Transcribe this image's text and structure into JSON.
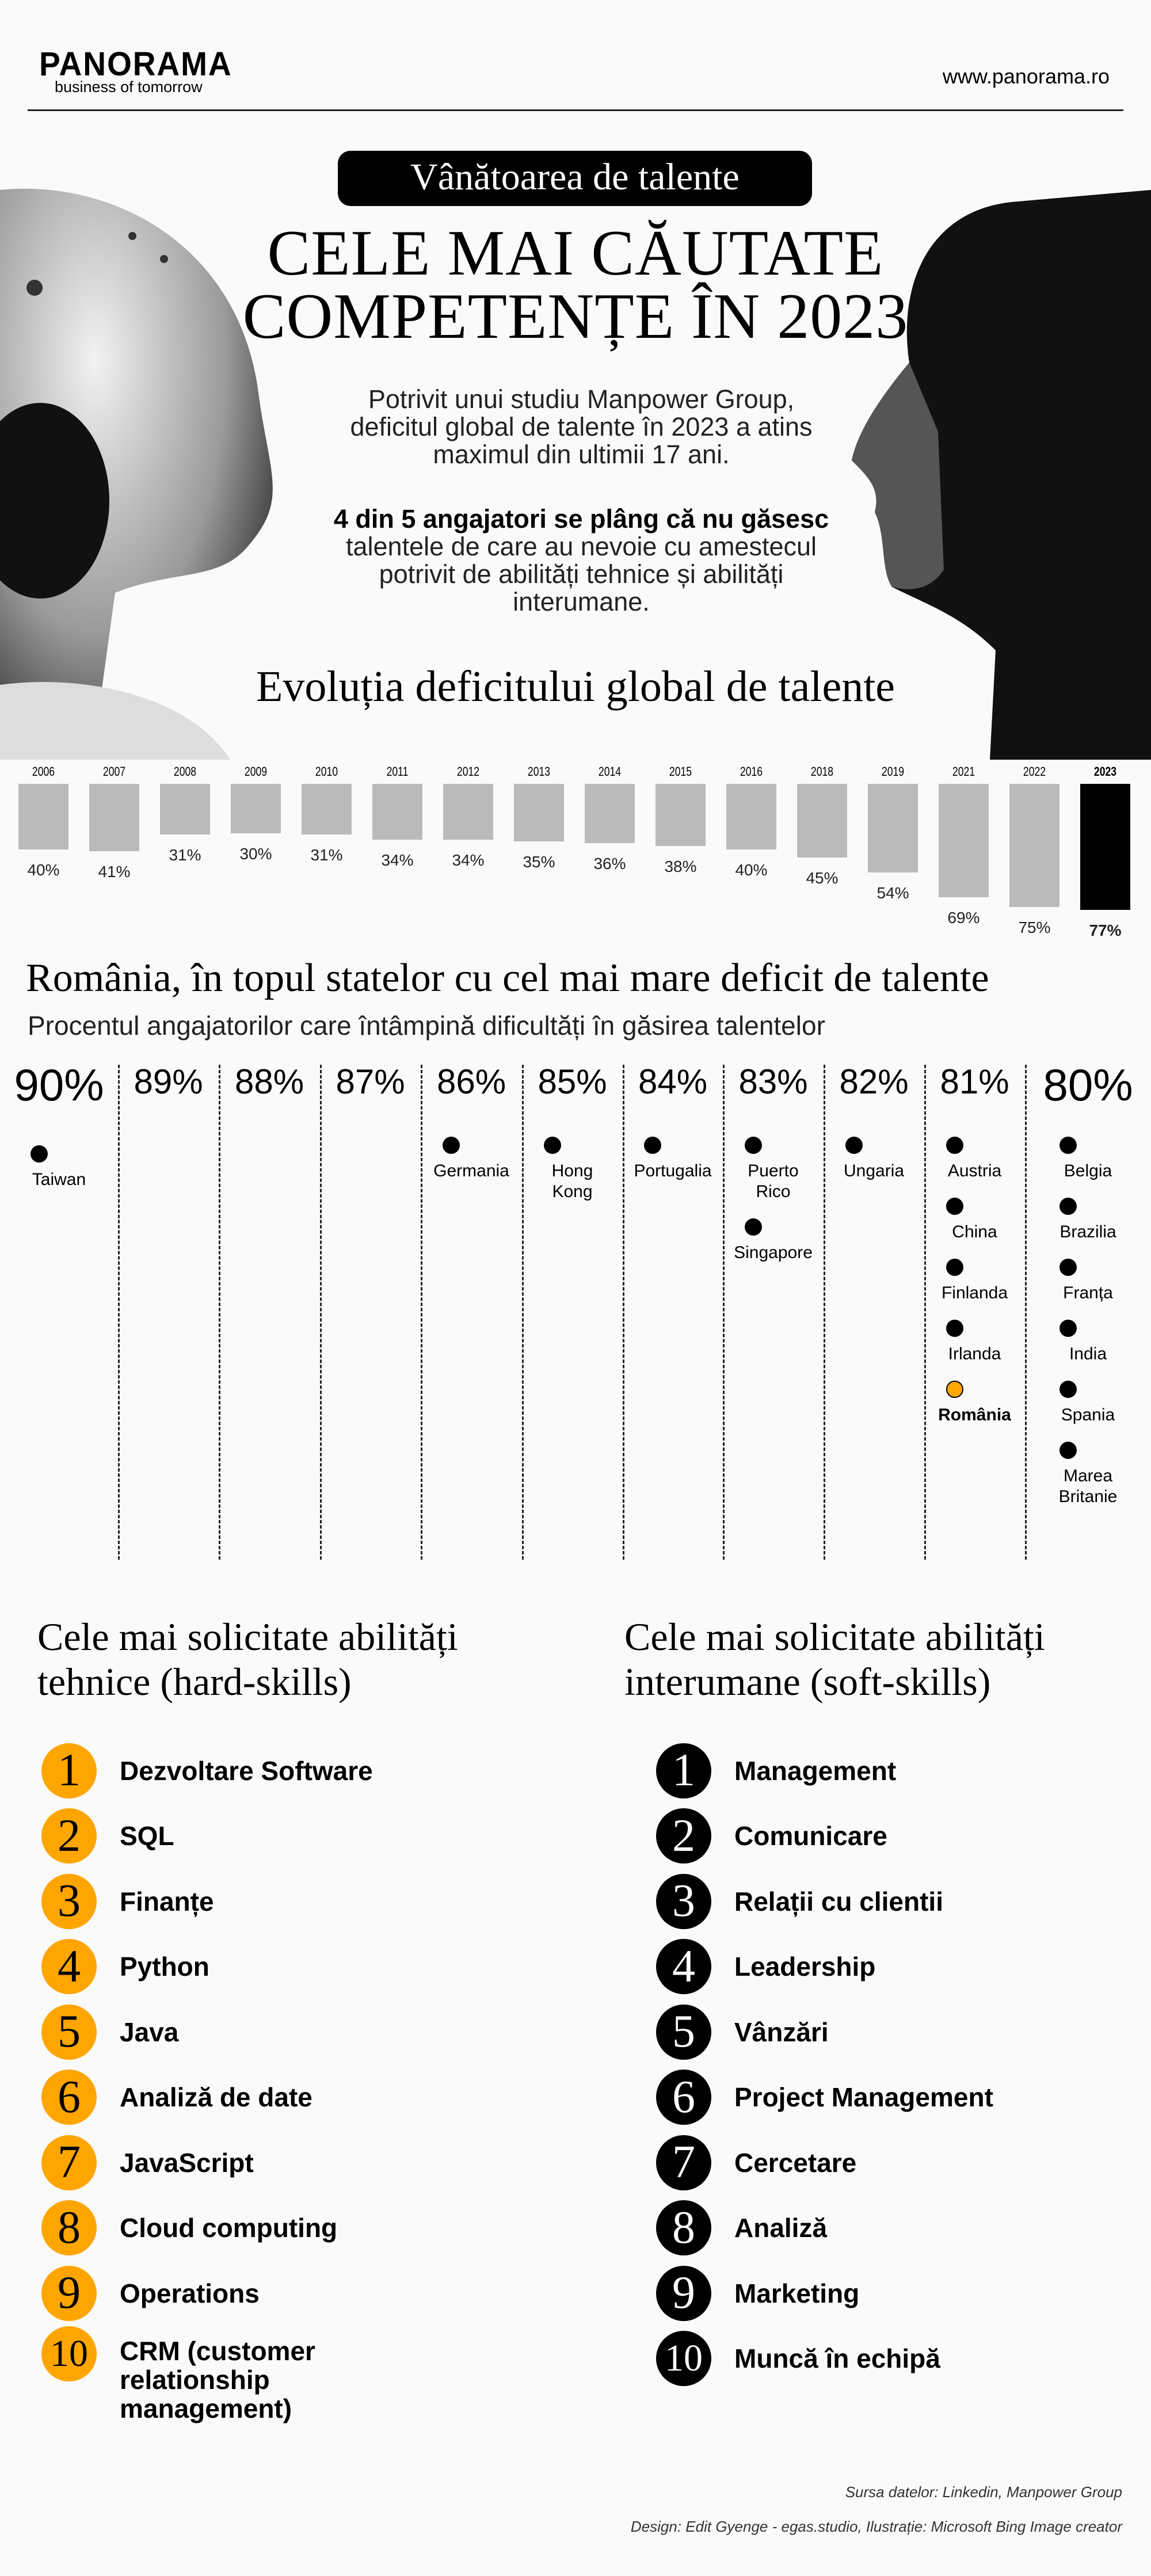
{
  "header": {
    "logo": "PANORAMA",
    "tagline": "business of tomorrow",
    "url": "www.panorama.ro"
  },
  "hero": {
    "pill": "Vânătoarea de talente",
    "title_line1": "CELE MAI CĂUTATE",
    "title_line2": "COMPETENȚE ÎN 2023",
    "intro": "Potrivit unui studiu Manpower Group, deficitul global de talente în 2023 a atins maximul din ultimii 17 ani.",
    "highlight_bold": "4 din 5 angajatori se plâng că nu găsesc",
    "highlight_rest": " talentele de care au nevoie cu amestecul potrivit de abilități tehnice și abilități interumane."
  },
  "chart_data": [
    {
      "type": "bar",
      "title": "Evoluția deficitului global de talente",
      "categories": [
        "2006",
        "2007",
        "2008",
        "2009",
        "2010",
        "2011",
        "2012",
        "2013",
        "2014",
        "2015",
        "2016",
        "2018",
        "2019",
        "2021",
        "2022",
        "2023"
      ],
      "values": [
        40,
        41,
        31,
        30,
        31,
        34,
        34,
        35,
        36,
        38,
        40,
        45,
        54,
        69,
        75,
        77
      ],
      "unit": "%",
      "highlight": "2023",
      "ylim": [
        0,
        100
      ]
    },
    {
      "type": "scatter",
      "title": "România, în topul statelor cu cel mai mare deficit de talente",
      "subtitle": "Procentul angajatorilor care întâmpină dificultăți în găsirea talentelor",
      "columns": [
        {
          "pct": "90%",
          "countries": [
            "Taiwan"
          ]
        },
        {
          "pct": "89%",
          "countries": []
        },
        {
          "pct": "88%",
          "countries": []
        },
        {
          "pct": "87%",
          "countries": []
        },
        {
          "pct": "86%",
          "countries": [
            "Germania"
          ]
        },
        {
          "pct": "85%",
          "countries": [
            "Hong Kong"
          ]
        },
        {
          "pct": "84%",
          "countries": [
            "Portugalia"
          ]
        },
        {
          "pct": "83%",
          "countries": [
            "Puerto Rico",
            "Singapore"
          ]
        },
        {
          "pct": "82%",
          "countries": [
            "Ungaria"
          ]
        },
        {
          "pct": "81%",
          "countries": [
            "Austria",
            "China",
            "Finlanda",
            "Irlanda",
            "România"
          ]
        },
        {
          "pct": "80%",
          "countries": [
            "Belgia",
            "Brazilia",
            "Franța",
            "India",
            "Spania",
            "Marea Britanie"
          ]
        }
      ],
      "highlight": "România"
    }
  ],
  "hard": {
    "title": "Cele mai solicitate abilități tehnice (hard-skills)",
    "items": [
      "Dezvoltare Software",
      "SQL",
      "Finanțe",
      "Python",
      "Java",
      "Analiză de date",
      "JavaScript",
      "Cloud computing",
      "Operations",
      "CRM (customer relationship management)"
    ]
  },
  "soft": {
    "title": "Cele mai solicitate abilități interumane (soft-skills)",
    "items": [
      "Management",
      "Comunicare",
      "Relații cu clientii",
      "Leadership",
      "Vânzări",
      "Project Management",
      "Cercetare",
      "Analiză",
      "Marketing",
      "Muncă în echipă"
    ]
  },
  "footer": {
    "source": "Sursa datelor: Linkedin, Manpower Group",
    "credits": "Design: Edit Gyenge -  egas.studio, Ilustrație: Microsoft Bing Image creator"
  },
  "colors": {
    "accent": "#ffa500",
    "bar": "#bababa",
    "highlight_bar": "#000000",
    "bg": "#fafafa"
  }
}
